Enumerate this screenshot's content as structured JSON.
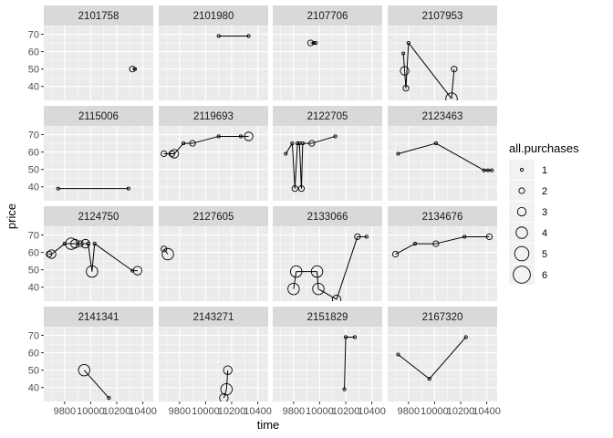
{
  "chart_data": {
    "type": "scatter",
    "xlabel": "time",
    "ylabel": "price",
    "xlim": [
      9640,
      10480
    ],
    "ylim": [
      32,
      75
    ],
    "x_ticks": [
      9800,
      10000,
      10200,
      10400
    ],
    "x_tick_labels": [
      "9800",
      "10000",
      "10200",
      "10400"
    ],
    "y_ticks": [
      40,
      50,
      60,
      70
    ],
    "y_tick_labels": [
      "40",
      "50",
      "60",
      "70"
    ],
    "grid": true,
    "legend": {
      "title": "all.purchases",
      "position": "right",
      "values": [
        1,
        2,
        3,
        4,
        5,
        6
      ],
      "labels": [
        "1",
        "2",
        "3",
        "4",
        "5",
        "6"
      ]
    },
    "colors": {
      "panel_bg": "#ebebeb",
      "strip_bg": "#d9d9d9",
      "grid_major": "#ffffff",
      "ink": "#000000",
      "tick_text": "#4d4d4d",
      "title_text": "#1a1a1a"
    },
    "facets": [
      {
        "id": "2101758",
        "points": [
          [
            10320,
            50,
            2
          ],
          [
            10340,
            50,
            1
          ]
        ]
      },
      {
        "id": "2101980",
        "points": [
          [
            10100,
            69,
            1
          ],
          [
            10330,
            69,
            1
          ]
        ]
      },
      {
        "id": "2107706",
        "points": [
          [
            9930,
            65,
            2
          ],
          [
            9955,
            65,
            1
          ],
          [
            9970,
            65,
            1
          ]
        ]
      },
      {
        "id": "2107953",
        "points": [
          [
            9760,
            59,
            1
          ],
          [
            9770,
            49,
            3
          ],
          [
            9780,
            39,
            2
          ],
          [
            9800,
            65,
            1
          ],
          [
            10130,
            33,
            4
          ],
          [
            10150,
            50,
            2
          ]
        ]
      },
      {
        "id": "2115006",
        "points": [
          [
            9750,
            39,
            1
          ],
          [
            10290,
            39,
            1
          ]
        ]
      },
      {
        "id": "2119693",
        "points": [
          [
            9680,
            59,
            2
          ],
          [
            9740,
            59,
            2
          ],
          [
            9760,
            59,
            3
          ],
          [
            9830,
            65,
            1
          ],
          [
            9900,
            65,
            2
          ],
          [
            10100,
            69,
            1
          ],
          [
            10270,
            69,
            1
          ],
          [
            10330,
            69,
            3
          ]
        ]
      },
      {
        "id": "2122705",
        "points": [
          [
            9740,
            59,
            1
          ],
          [
            9790,
            65,
            1
          ],
          [
            9810,
            39,
            2
          ],
          [
            9830,
            65,
            1
          ],
          [
            9845,
            65,
            1
          ],
          [
            9860,
            39,
            2
          ],
          [
            9870,
            65,
            1
          ],
          [
            9940,
            65,
            2
          ],
          [
            10120,
            69,
            1
          ]
        ]
      },
      {
        "id": "2123463",
        "points": [
          [
            9720,
            59,
            1
          ],
          [
            10010,
            65,
            1
          ],
          [
            10380,
            49.5,
            1
          ],
          [
            10410,
            49.5,
            1
          ],
          [
            10440,
            49.5,
            1
          ]
        ]
      },
      {
        "id": "2124750",
        "points": [
          [
            9680,
            59,
            2
          ],
          [
            9700,
            59,
            3
          ],
          [
            9800,
            65,
            1
          ],
          [
            9850,
            65,
            4
          ],
          [
            9880,
            65,
            3
          ],
          [
            9920,
            65,
            2
          ],
          [
            9960,
            65,
            3
          ],
          [
            9980,
            65,
            1
          ],
          [
            10010,
            49,
            4
          ],
          [
            10030,
            65,
            1
          ],
          [
            10320,
            49.5,
            1
          ],
          [
            10360,
            49.5,
            3
          ]
        ]
      },
      {
        "id": "2127605",
        "points": [
          [
            9680,
            62,
            2
          ],
          [
            9710,
            59,
            4
          ]
        ]
      },
      {
        "id": "2133066",
        "points": [
          [
            9800,
            39,
            4
          ],
          [
            9820,
            49,
            4
          ],
          [
            9980,
            49,
            4
          ],
          [
            9990,
            39,
            4
          ],
          [
            10130,
            33,
            3
          ],
          [
            10290,
            69,
            2
          ],
          [
            10360,
            69,
            1
          ]
        ]
      },
      {
        "id": "2134676",
        "points": [
          [
            9700,
            59,
            2
          ],
          [
            9850,
            65,
            1
          ],
          [
            10010,
            65,
            2
          ],
          [
            10230,
            69,
            1
          ],
          [
            10420,
            69,
            2
          ]
        ]
      },
      {
        "id": "2141341",
        "points": [
          [
            9950,
            50,
            4
          ],
          [
            10140,
            34,
            1
          ]
        ]
      },
      {
        "id": "2143271",
        "points": [
          [
            10140,
            34,
            3
          ],
          [
            10160,
            39,
            4
          ],
          [
            10170,
            50,
            3
          ]
        ]
      },
      {
        "id": "2151829",
        "points": [
          [
            10190,
            39,
            1
          ],
          [
            10200,
            69,
            1
          ],
          [
            10270,
            69,
            1
          ]
        ]
      },
      {
        "id": "2167320",
        "points": [
          [
            9720,
            59,
            1
          ],
          [
            9960,
            45,
            1
          ],
          [
            10240,
            69,
            1
          ]
        ]
      }
    ]
  }
}
